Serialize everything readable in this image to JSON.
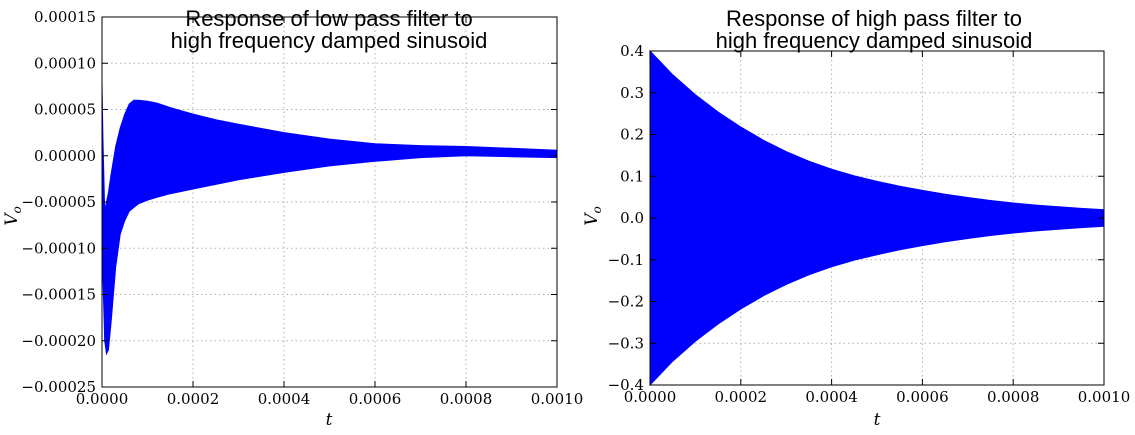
{
  "chart_data": [
    {
      "type": "area",
      "title_line1": "Response of low pass filter to",
      "title_line2": "high frequency damped sinusoid",
      "xlabel": "t",
      "ylabel": "V_o",
      "xlim": [
        0,
        0.001
      ],
      "ylim": [
        -0.00025,
        0.00015
      ],
      "x_ticks": [
        0,
        0.0002,
        0.0004,
        0.0006,
        0.0008,
        0.001
      ],
      "x_tick_labels": [
        "0.0000",
        "0.0002",
        "0.0004",
        "0.0006",
        "0.0008",
        "0.0010"
      ],
      "y_ticks": [
        -0.00025,
        -0.0002,
        -0.00015,
        -0.0001,
        -5e-05,
        0,
        5e-05,
        0.0001,
        0.00015
      ],
      "y_tick_labels": [
        "−0.00025",
        "−0.00020",
        "−0.00015",
        "−0.00010",
        "−0.00005",
        "0.00000",
        "0.00005",
        "0.00010",
        "0.00015"
      ],
      "grid": true,
      "color": "#0000ff",
      "envelope": {
        "x": [
          0,
          2e-06,
          6e-06,
          1e-05,
          1.4e-05,
          2e-05,
          3e-05,
          4e-05,
          5e-05,
          6e-05,
          7e-05,
          8e-05,
          0.0001,
          0.00012,
          0.00015,
          0.0002,
          0.00025,
          0.0003,
          0.0004,
          0.0005,
          0.0006,
          0.0007,
          0.0008,
          0.0009,
          0.001
        ],
        "upper": [
          8e-05,
          2e-05,
          -6e-05,
          -5e-05,
          -4e-05,
          -2e-05,
          1e-05,
          3e-05,
          4.5e-05,
          5.6e-05,
          6e-05,
          6e-05,
          5.9e-05,
          5.7e-05,
          5.2e-05,
          4.5e-05,
          3.9e-05,
          3.4e-05,
          2.5e-05,
          1.8e-05,
          1.3e-05,
          1.1e-05,
          1e-05,
          8e-06,
          6e-06
        ],
        "lower": [
          8e-05,
          -0.00013,
          -0.0002,
          -0.000214,
          -0.00021,
          -0.00018,
          -0.00012,
          -8.5e-05,
          -7e-05,
          -6e-05,
          -5.6e-05,
          -5.2e-05,
          -4.8e-05,
          -4.5e-05,
          -4.1e-05,
          -3.6e-05,
          -3.1e-05,
          -2.6e-05,
          -1.8e-05,
          -1.1e-05,
          -6e-06,
          -2e-06,
          0,
          -1e-06,
          -2e-06
        ]
      }
    },
    {
      "type": "area",
      "title_line1": "Response of high pass filter to",
      "title_line2": "high frequency damped sinusoid",
      "xlabel": "t",
      "ylabel": "V_o",
      "xlim": [
        0,
        0.001
      ],
      "ylim": [
        -0.4,
        0.4
      ],
      "x_ticks": [
        0,
        0.0002,
        0.0004,
        0.0006,
        0.0008,
        0.001
      ],
      "x_tick_labels": [
        "0.0000",
        "0.0002",
        "0.0004",
        "0.0006",
        "0.0008",
        "0.0010"
      ],
      "y_ticks": [
        -0.4,
        -0.3,
        -0.2,
        -0.1,
        0,
        0.1,
        0.2,
        0.3,
        0.4
      ],
      "y_tick_labels": [
        "−0.4",
        "−0.3",
        "−0.2",
        "−0.1",
        "0.0",
        "0.1",
        "0.2",
        "0.3",
        "0.4"
      ],
      "grid": true,
      "color": "#0000ff",
      "envelope": {
        "x": [
          0,
          5e-05,
          0.0001,
          0.00015,
          0.0002,
          0.00025,
          0.0003,
          0.00035,
          0.0004,
          0.00045,
          0.0005,
          0.00055,
          0.0006,
          0.00065,
          0.0007,
          0.00075,
          0.0008,
          0.00085,
          0.0009,
          0.00095,
          0.001
        ],
        "upper": [
          0.4,
          0.343,
          0.295,
          0.254,
          0.218,
          0.186,
          0.159,
          0.136,
          0.117,
          0.101,
          0.088,
          0.076,
          0.066,
          0.057,
          0.049,
          0.042,
          0.036,
          0.031,
          0.027,
          0.023,
          0.02
        ],
        "lower": [
          -0.4,
          -0.343,
          -0.295,
          -0.254,
          -0.218,
          -0.186,
          -0.159,
          -0.136,
          -0.117,
          -0.101,
          -0.088,
          -0.076,
          -0.066,
          -0.057,
          -0.049,
          -0.042,
          -0.036,
          -0.031,
          -0.027,
          -0.023,
          -0.02
        ]
      }
    }
  ]
}
